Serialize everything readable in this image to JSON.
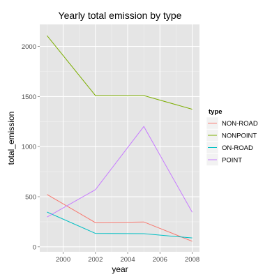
{
  "chart_data": {
    "type": "line",
    "title": "Yearly total emission by type",
    "xlabel": "year",
    "ylabel": "total_emission",
    "x": [
      1999,
      2002,
      2005,
      2008
    ],
    "xlim": [
      1998.55,
      2008.45
    ],
    "ylim": [
      -50,
      2220
    ],
    "xticks": [
      2000,
      2002,
      2004,
      2006,
      2008
    ],
    "yticks": [
      0,
      500,
      1000,
      1500,
      2000
    ],
    "grid": true,
    "legend": {
      "title": "type",
      "placement": "right"
    },
    "series": [
      {
        "name": "NON-ROAD",
        "color": "#F8766D",
        "values": [
          522,
          241,
          248,
          55
        ]
      },
      {
        "name": "NONPOINT",
        "color": "#7CAE00",
        "values": [
          2108,
          1510,
          1510,
          1373
        ]
      },
      {
        "name": "ON-ROAD",
        "color": "#00BFC4",
        "values": [
          347,
          134,
          131,
          88
        ]
      },
      {
        "name": "POINT",
        "color": "#C77CFF",
        "values": [
          297,
          570,
          1201,
          345
        ]
      }
    ]
  }
}
